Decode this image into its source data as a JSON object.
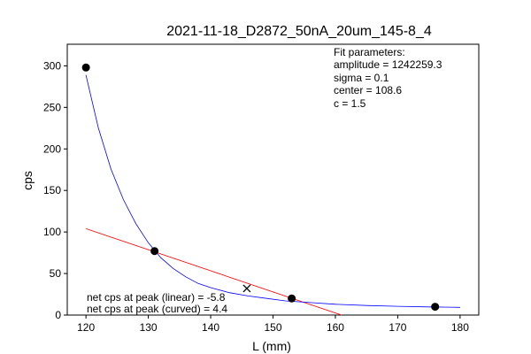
{
  "chart_data": {
    "type": "scatter",
    "title": "2021-11-18_D2872_50nA_20um_145-8_4",
    "xlabel": "L (mm)",
    "ylabel": "cps",
    "xlim": [
      117,
      183
    ],
    "ylim": [
      0,
      326
    ],
    "x_ticks": [
      120,
      130,
      140,
      150,
      160,
      170,
      180
    ],
    "y_ticks": [
      0,
      50,
      100,
      150,
      200,
      250,
      300
    ],
    "grid": false,
    "points": [
      {
        "x": 120,
        "y": 298
      },
      {
        "x": 131,
        "y": 77
      },
      {
        "x": 153,
        "y": 20
      },
      {
        "x": 176,
        "y": 10
      }
    ],
    "fit_curve": {
      "color": "#0000ff",
      "x": [
        120,
        122,
        124,
        126,
        128,
        130,
        132,
        134,
        136,
        138,
        140,
        143,
        146,
        149,
        152,
        156,
        160,
        165,
        170,
        175,
        180
      ],
      "y": [
        289,
        225,
        176,
        139,
        110,
        87,
        69,
        56,
        46,
        38,
        33,
        27,
        23,
        20,
        17,
        15,
        13,
        11.5,
        10.5,
        9.8,
        9.3
      ]
    },
    "linear_line": {
      "color": "#ff0000",
      "x": [
        120,
        161
      ],
      "y": [
        104,
        0
      ]
    },
    "peak_marker": {
      "x": 145.8,
      "y": 32,
      "symbol": "X"
    },
    "fit_parameters": {
      "heading": "Fit parameters:",
      "lines": [
        "amplitude = 1242259.3",
        "sigma = 0.1",
        "center = 108.6",
        "c = 1.5"
      ]
    },
    "annotations": {
      "linear": "net cps at peak (linear) = -5.8",
      "curved": "net cps at peak (curved) = 4.4"
    }
  }
}
